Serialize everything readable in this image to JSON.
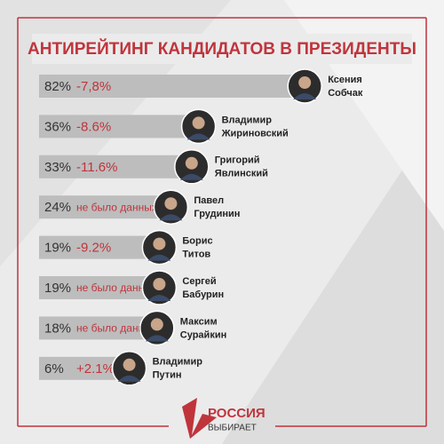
{
  "chart_data": {
    "type": "bar",
    "title": "АНТИРЕЙТИНГ КАНДИДАТОВ В ПРЕЗИДЕНТЫ",
    "categories": [
      [
        "Ксения",
        "Собчак"
      ],
      [
        "Владимир",
        "Жириновский"
      ],
      [
        "Григорий",
        "Явлинский"
      ],
      [
        "Павел",
        "Грудинин"
      ],
      [
        "Борис",
        "Титов"
      ],
      [
        "Сергей",
        "Бабурин"
      ],
      [
        "Максим",
        "Сурайкин"
      ],
      [
        "Владимир",
        "Путин"
      ]
    ],
    "values": [
      82,
      36,
      33,
      24,
      19,
      19,
      18,
      6
    ],
    "value_labels": [
      "82%",
      "36%",
      "33%",
      "24%",
      "19%",
      "19%",
      "18%",
      "6%"
    ],
    "changes": [
      "-7,8%",
      "-8.6%",
      "-11.6%",
      "не было данных",
      "-9.2%",
      "не было данных",
      "не было данных",
      "+2.1%"
    ],
    "color": "#bdbdbd",
    "change_color": "#c0343c",
    "logo": {
      "line1": "РОССИЯ",
      "line2": "ВЫБИРАЕТ"
    }
  }
}
